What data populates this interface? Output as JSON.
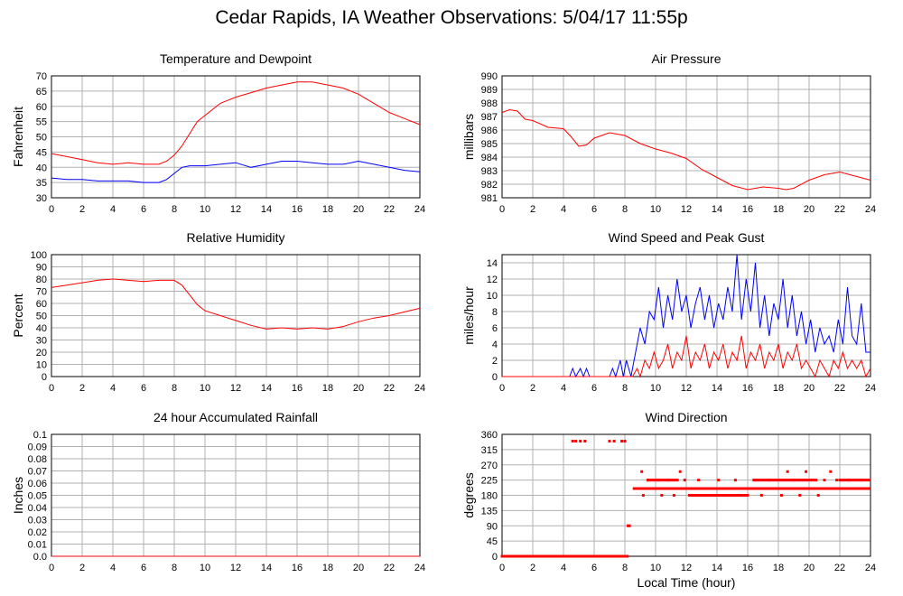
{
  "title": "Cedar Rapids, IA Weather Observations: 5/04/17 11:55p",
  "chart_data": [
    {
      "id": "temp",
      "type": "line",
      "title": "Temperature and Dewpoint",
      "xlabel": "",
      "ylabel": "Fahrenheit",
      "xlim": [
        0,
        24
      ],
      "ylim": [
        30,
        70
      ],
      "yticks": [
        30,
        35,
        40,
        45,
        50,
        55,
        60,
        65,
        70
      ],
      "xticks": [
        0,
        2,
        4,
        6,
        8,
        10,
        12,
        14,
        16,
        18,
        20,
        22,
        24
      ],
      "grid": true,
      "series": [
        {
          "color": "#ff0000",
          "x": [
            0,
            1,
            2,
            3,
            4,
            5,
            6,
            7,
            7.5,
            8,
            8.5,
            9,
            9.5,
            10,
            10.5,
            11,
            12,
            13,
            14,
            15,
            16,
            17,
            18,
            19,
            20,
            21,
            22,
            23,
            24
          ],
          "y": [
            44.5,
            43.5,
            42.5,
            41.5,
            41,
            41.5,
            41,
            41,
            42,
            44,
            47,
            51,
            55,
            57,
            59,
            61,
            63,
            64.5,
            66,
            67,
            68,
            68,
            67,
            66,
            64,
            61,
            58,
            56,
            54
          ]
        },
        {
          "color": "#0000ff",
          "x": [
            0,
            1,
            2,
            3,
            4,
            5,
            6,
            7,
            7.5,
            8,
            8.5,
            9,
            10,
            11,
            12,
            13,
            14,
            15,
            16,
            17,
            18,
            19,
            20,
            21,
            22,
            23,
            24
          ],
          "y": [
            36.5,
            36,
            36,
            35.5,
            35.5,
            35.5,
            35,
            35,
            36,
            38,
            40,
            40.5,
            40.5,
            41,
            41.5,
            40,
            41,
            42,
            42,
            41.5,
            41,
            41,
            42,
            41,
            40,
            39,
            38.5
          ]
        }
      ]
    },
    {
      "id": "pressure",
      "type": "line",
      "title": "Air Pressure",
      "xlabel": "",
      "ylabel": "millibars",
      "xlim": [
        0,
        24
      ],
      "ylim": [
        981,
        990
      ],
      "yticks": [
        981,
        982,
        983,
        984,
        985,
        986,
        987,
        988,
        989,
        990
      ],
      "xticks": [
        0,
        2,
        4,
        6,
        8,
        10,
        12,
        14,
        16,
        18,
        20,
        22,
        24
      ],
      "grid": true,
      "series": [
        {
          "color": "#ff0000",
          "x": [
            0,
            0.5,
            1,
            1.5,
            2,
            3,
            4,
            4.5,
            5,
            5.5,
            6,
            7,
            8,
            9,
            10,
            11,
            12,
            13,
            14,
            15,
            16,
            17,
            18,
            18.5,
            19,
            20,
            21,
            22,
            23,
            24
          ],
          "y": [
            987.3,
            987.5,
            987.4,
            986.8,
            986.7,
            986.2,
            986.1,
            985.5,
            984.8,
            984.9,
            985.4,
            985.8,
            985.6,
            985.0,
            984.6,
            984.3,
            983.9,
            983.1,
            982.5,
            981.9,
            981.6,
            981.8,
            981.7,
            981.6,
            981.7,
            982.3,
            982.7,
            982.9,
            982.6,
            982.3
          ]
        }
      ]
    },
    {
      "id": "rh",
      "type": "line",
      "title": "Relative Humidity",
      "xlabel": "",
      "ylabel": "Percent",
      "xlim": [
        0,
        24
      ],
      "ylim": [
        0,
        100
      ],
      "yticks": [
        0,
        10,
        20,
        30,
        40,
        50,
        60,
        70,
        80,
        90,
        100
      ],
      "xticks": [
        0,
        2,
        4,
        6,
        8,
        10,
        12,
        14,
        16,
        18,
        20,
        22,
        24
      ],
      "grid": true,
      "series": [
        {
          "color": "#ff0000",
          "x": [
            0,
            1,
            2,
            3,
            4,
            5,
            6,
            7,
            8,
            8.5,
            9,
            9.5,
            10,
            11,
            12,
            13,
            14,
            15,
            16,
            17,
            18,
            19,
            20,
            21,
            22,
            23,
            24
          ],
          "y": [
            73,
            75,
            77,
            79,
            80,
            79,
            78,
            79,
            79,
            75,
            67,
            59,
            54,
            50,
            46,
            42,
            39,
            40,
            39,
            40,
            39,
            41,
            45,
            48,
            50,
            53,
            56
          ]
        }
      ]
    },
    {
      "id": "wind",
      "type": "line",
      "title": "Wind Speed and Peak Gust",
      "xlabel": "",
      "ylabel": "miles/hour",
      "xlim": [
        0,
        24
      ],
      "ylim": [
        0,
        15
      ],
      "yticks": [
        0,
        2,
        4,
        6,
        8,
        10,
        12,
        14
      ],
      "xticks": [
        0,
        2,
        4,
        6,
        8,
        10,
        12,
        14,
        16,
        18,
        20,
        22,
        24
      ],
      "grid": true,
      "series": [
        {
          "color": "#0000ff",
          "x": [
            0,
            4.4,
            4.6,
            4.8,
            5.1,
            5.3,
            5.5,
            5.7,
            7.0,
            7.2,
            7.4,
            7.7,
            7.9,
            8.1,
            8.4,
            8.7,
            9.0,
            9.3,
            9.6,
            9.9,
            10.2,
            10.5,
            10.8,
            11.1,
            11.4,
            11.7,
            12.0,
            12.3,
            12.6,
            12.9,
            13.2,
            13.5,
            13.8,
            14.1,
            14.4,
            14.7,
            15.0,
            15.3,
            15.6,
            15.9,
            16.2,
            16.5,
            16.8,
            17.1,
            17.4,
            17.7,
            18.0,
            18.3,
            18.6,
            18.9,
            19.2,
            19.5,
            19.8,
            20.1,
            20.4,
            20.7,
            21.0,
            21.3,
            21.6,
            21.9,
            22.2,
            22.5,
            22.8,
            23.1,
            23.4,
            23.7,
            24
          ],
          "y": [
            0,
            0,
            1,
            0,
            1,
            0,
            1,
            0,
            0,
            1,
            0,
            2,
            0,
            2,
            0,
            3,
            6,
            4,
            8,
            7,
            11,
            6,
            10,
            7,
            12,
            8,
            10,
            6,
            9,
            11,
            7,
            10,
            6,
            9,
            7,
            11,
            8,
            15,
            7,
            12,
            8,
            14,
            6,
            10,
            5,
            9,
            7,
            12,
            6,
            10,
            5,
            8,
            4,
            7,
            3,
            6,
            4,
            5,
            3,
            7,
            4,
            11,
            5,
            4,
            9,
            3,
            3
          ]
        },
        {
          "color": "#ff0000",
          "x": [
            0,
            8.5,
            8.8,
            9.0,
            9.3,
            9.6,
            9.9,
            10.2,
            10.5,
            10.8,
            11.1,
            11.4,
            11.7,
            12.0,
            12.3,
            12.6,
            12.9,
            13.2,
            13.5,
            13.8,
            14.1,
            14.4,
            14.7,
            15.0,
            15.3,
            15.6,
            15.9,
            16.2,
            16.5,
            16.8,
            17.1,
            17.4,
            17.7,
            18.0,
            18.3,
            18.6,
            18.9,
            19.2,
            19.5,
            19.8,
            20.1,
            20.4,
            20.7,
            21.0,
            21.3,
            21.6,
            21.9,
            22.2,
            22.5,
            22.8,
            23.1,
            23.4,
            23.7,
            24
          ],
          "y": [
            0,
            0,
            1,
            0,
            2,
            1,
            3,
            1,
            2,
            4,
            1,
            3,
            2,
            5,
            1,
            3,
            2,
            4,
            1,
            3,
            2,
            4,
            1,
            3,
            2,
            5,
            1,
            3,
            2,
            4,
            1,
            3,
            2,
            4,
            1,
            3,
            2,
            4,
            1,
            2,
            1,
            0,
            2,
            1,
            0,
            2,
            1,
            3,
            1,
            2,
            1,
            2,
            0,
            1
          ]
        }
      ]
    },
    {
      "id": "rain",
      "type": "line",
      "title": "24 hour Accumulated Rainfall",
      "xlabel": "",
      "ylabel": "Inches",
      "xlim": [
        0,
        24
      ],
      "ylim": [
        0,
        0.1
      ],
      "yticks": [
        0,
        0.01,
        0.02,
        0.03,
        0.04,
        0.05,
        0.06,
        0.07,
        0.08,
        0.09,
        0.1
      ],
      "yticklabels": [
        "0.0",
        "0.01",
        "0.02",
        "0.03",
        "0.04",
        "0.05",
        "0.06",
        "0.07",
        "0.08",
        "0.09",
        "0.1"
      ],
      "xticks": [
        0,
        2,
        4,
        6,
        8,
        10,
        12,
        14,
        16,
        18,
        20,
        22,
        24
      ],
      "grid": true,
      "series": [
        {
          "color": "#ff0000",
          "x": [
            0,
            24
          ],
          "y": [
            0,
            0
          ]
        }
      ]
    },
    {
      "id": "wdir",
      "type": "scatter",
      "title": "Wind Direction",
      "xlabel": "Local Time (hour)",
      "ylabel": "degrees",
      "xlim": [
        0,
        24
      ],
      "ylim": [
        0,
        360
      ],
      "yticks": [
        0,
        45,
        90,
        135,
        180,
        225,
        270,
        315,
        360
      ],
      "xticks": [
        0,
        2,
        4,
        6,
        8,
        10,
        12,
        14,
        16,
        18,
        20,
        22,
        24
      ],
      "grid": true,
      "series": [
        {
          "color": "#ff0000",
          "points": [
            [
              4.6,
              340
            ],
            [
              4.8,
              340
            ],
            [
              5.1,
              340
            ],
            [
              5.4,
              340
            ],
            [
              7.0,
              340
            ],
            [
              7.3,
              340
            ],
            [
              7.8,
              340
            ],
            [
              8.0,
              340
            ],
            [
              8.2,
              90
            ],
            [
              8.3,
              90
            ],
            [
              8.8,
              200
            ],
            [
              9.1,
              250
            ],
            [
              9.2,
              180
            ],
            [
              9.5,
              225
            ],
            [
              9.8,
              200
            ],
            [
              10.2,
              225
            ],
            [
              10.4,
              180
            ],
            [
              10.8,
              225
            ],
            [
              11.2,
              180
            ],
            [
              11.6,
              250
            ],
            [
              11.9,
              225
            ],
            [
              12.4,
              180
            ],
            [
              12.8,
              225
            ],
            [
              13.3,
              180
            ],
            [
              13.6,
              200
            ],
            [
              14.1,
              225
            ],
            [
              14.6,
              180
            ],
            [
              15.2,
              225
            ],
            [
              15.6,
              180
            ],
            [
              16.0,
              200
            ],
            [
              16.4,
              225
            ],
            [
              16.9,
              180
            ],
            [
              17.4,
              225
            ],
            [
              17.8,
              200
            ],
            [
              18.2,
              180
            ],
            [
              18.6,
              250
            ],
            [
              19.0,
              225
            ],
            [
              19.4,
              180
            ],
            [
              19.8,
              250
            ],
            [
              20.2,
              200
            ],
            [
              20.6,
              180
            ],
            [
              21.0,
              225
            ],
            [
              21.4,
              250
            ],
            [
              21.8,
              225
            ],
            [
              22.2,
              200
            ],
            [
              22.6,
              225
            ],
            [
              23.0,
              200
            ],
            [
              23.4,
              225
            ],
            [
              23.8,
              200
            ]
          ],
          "runs": [
            {
              "from": 0,
              "to": 8.2,
              "step": 0.08,
              "y": 0
            },
            {
              "from": 8.6,
              "to": 24,
              "step": 0.15,
              "y": 200
            },
            {
              "from": 9.5,
              "to": 11.5,
              "step": 0.12,
              "y": 225
            },
            {
              "from": 12.2,
              "to": 16.0,
              "step": 0.1,
              "y": 180
            },
            {
              "from": 16.5,
              "to": 20.5,
              "step": 0.12,
              "y": 225
            },
            {
              "from": 22.0,
              "to": 24,
              "step": 0.12,
              "y": 225
            }
          ]
        }
      ]
    }
  ]
}
